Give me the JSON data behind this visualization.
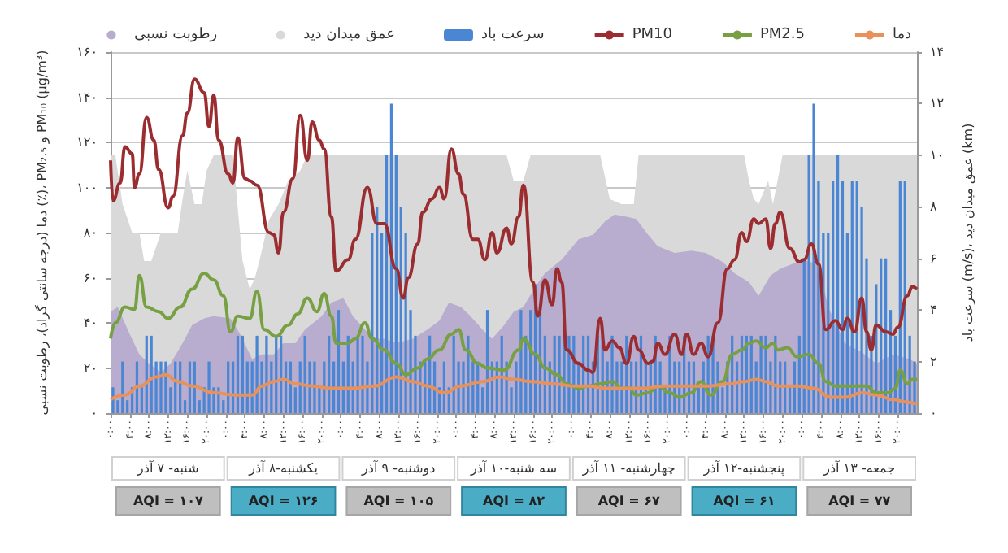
{
  "chart_data": {
    "type": "line",
    "ylabel": "دما (درجه سانتی گراد)، رطوبت نسبی (٪)، PM₂.₅ و PM₁₀ (µg/m³)",
    "y2label": "سرعت باد (m/s)، عمق میدان دید (km)",
    "x": [
      "--09-07T00:30",
      "--09-07T01:30",
      "--09-07T02:30",
      "--09-07T03:30",
      "--09-07T04:30",
      "--09-07T05:30",
      "--09-07T06:30",
      "--09-07T07:30",
      "--09-07T08:30",
      "--09-07T09:30",
      "--09-07T10:30",
      "--09-07T11:30",
      "--09-07T12:30",
      "--09-07T13:30",
      "--09-07T14:30",
      "--09-07T15:30",
      "--09-07T16:30",
      "--09-07T17:30",
      "--09-07T18:30",
      "--09-07T19:30",
      "--09-07T20:30",
      "--09-07T21:30",
      "--09-07T22:30",
      "--09-07T23:30",
      "--09-08T00:30",
      "--09-08T01:30",
      "--09-08T02:30",
      "--09-08T03:30",
      "--09-08T04:30",
      "--09-08T05:30",
      "--09-08T06:30",
      "--09-08T07:30",
      "--09-08T08:30",
      "--09-08T09:30",
      "--09-08T10:30",
      "--09-08T11:30",
      "--09-08T12:30",
      "--09-08T13:30",
      "--09-08T14:30",
      "--09-08T15:30",
      "--09-08T16:30",
      "--09-08T17:30",
      "--09-08T18:30",
      "--09-08T19:30",
      "--09-08T20:30",
      "--09-08T21:30",
      "--09-08T22:30",
      "--09-08T23:30",
      "--09-09T00:30",
      "--09-09T01:30",
      "--09-09T02:30",
      "--09-09T03:30",
      "--09-09T04:30",
      "--09-09T05:30",
      "--09-09T06:30",
      "--09-09T07:30",
      "--09-09T08:30",
      "--09-09T09:30",
      "--09-09T10:30",
      "--09-09T11:30",
      "--09-09T12:30",
      "--09-09T13:30",
      "--09-09T14:30",
      "--09-09T15:30",
      "--09-09T16:30",
      "--09-09T17:30",
      "--09-09T18:30",
      "--09-09T19:30",
      "--09-09T20:30",
      "--09-09T21:30",
      "--09-09T22:30",
      "--09-09T23:30",
      "--09-10T00:30",
      "--09-10T01:30",
      "--09-10T02:30",
      "--09-10T03:30",
      "--09-10T04:30",
      "--09-10T05:30",
      "--09-10T06:30",
      "--09-10T07:30",
      "--09-10T08:30",
      "--09-10T09:30",
      "--09-10T10:30",
      "--09-10T11:30",
      "--09-10T12:30",
      "--09-10T13:30",
      "--09-10T14:30",
      "--09-10T15:30",
      "--09-10T16:30",
      "--09-10T17:30",
      "--09-10T18:30",
      "--09-10T19:30",
      "--09-10T20:30",
      "--09-10T21:30",
      "--09-10T22:30",
      "--09-10T23:30",
      "--09-11T00:30",
      "--09-11T01:30",
      "--09-11T02:30",
      "--09-11T03:30",
      "--09-11T04:30",
      "--09-11T05:30",
      "--09-11T06:30",
      "--09-11T07:30",
      "--09-11T08:30",
      "--09-11T09:30",
      "--09-11T10:30",
      "--09-11T11:30",
      "--09-11T12:30",
      "--09-11T13:30",
      "--09-11T14:30",
      "--09-11T15:30",
      "--09-11T16:30",
      "--09-11T17:30",
      "--09-11T18:30",
      "--09-11T19:30",
      "--09-11T20:30",
      "--09-11T21:30",
      "--09-11T22:30",
      "--09-11T23:30",
      "--09-12T00:30",
      "--09-12T01:30",
      "--09-12T02:30",
      "--09-12T03:30",
      "--09-12T04:30",
      "--09-12T05:30",
      "--09-12T06:30",
      "--09-12T07:30",
      "--09-12T08:30",
      "--09-12T09:30",
      "--09-12T10:30",
      "--09-12T11:30",
      "--09-12T12:30",
      "--09-12T13:30",
      "--09-12T14:30",
      "--09-12T15:30",
      "--09-12T16:30",
      "--09-12T17:30",
      "--09-12T18:30",
      "--09-12T19:30",
      "--09-12T20:30",
      "--09-12T21:30",
      "--09-12T22:30",
      "--09-12T23:30",
      "--09-13T00:30",
      "--09-13T01:30",
      "--09-13T02:30",
      "--09-13T03:30",
      "--09-13T04:30",
      "--09-13T05:30",
      "--09-13T06:30",
      "--09-13T07:30",
      "--09-13T08:30",
      "--09-13T09:30",
      "--09-13T10:30",
      "--09-13T11:30",
      "--09-13T12:30",
      "--09-13T13:30",
      "--09-13T14:30",
      "--09-13T15:30",
      "--09-13T16:30",
      "--09-13T17:30",
      "--09-13T18:30",
      "--09-13T19:30",
      "--09-13T20:30",
      "--09-13T21:30",
      "--09-13T22:30",
      "--09-13T23:30"
    ],
    "series": [
      {
        "name": "رطوبت نسبی",
        "type": "area",
        "color": "#b9adcf",
        "x": [
          "--09-07T00:00",
          "--09-07T01:30",
          "--09-07T04:00",
          "--09-07T06:00",
          "--09-07T08:00",
          "--09-07T10:30",
          "--09-07T12:30",
          "--09-07T15:00",
          "--09-07T17:00",
          "--09-07T19:30",
          "--09-07T21:30",
          "--09-08T01:00",
          "--09-08T03:00",
          "--09-08T05:30",
          "--09-08T07:30",
          "--09-08T10:00",
          "--09-08T12:00",
          "--09-08T14:30",
          "--09-08T16:30",
          "--09-08T20:00",
          "--09-08T22:00",
          "--09-09T00:30",
          "--09-09T02:30",
          "--09-09T05:00",
          "--09-09T07:00",
          "--09-09T09:00",
          "--09-09T11:30",
          "--09-09T15:00",
          "--09-09T18:00",
          "--09-09T20:30",
          "--09-09T22:30",
          "--09-10T01:00",
          "--09-10T03:00",
          "--09-10T05:30",
          "--09-10T07:30",
          "--09-10T10:00",
          "--09-10T12:00",
          "--09-10T14:00",
          "--09-10T16:30",
          "--09-10T18:30",
          "--09-10T22:00",
          "--09-11T01:30",
          "--09-11T04:30",
          "--09-11T07:00",
          "--09-11T09:00",
          "--09-11T11:30",
          "--09-11T13:30",
          "--09-11T16:00",
          "--09-11T18:00",
          "--09-11T21:30",
          "--09-12T01:00",
          "--09-12T04:00",
          "--09-12T07:30",
          "--09-12T10:00",
          "--09-12T13:00",
          "--09-12T15:00",
          "--09-12T17:30",
          "--09-12T19:30",
          "--09-12T22:00",
          "--09-13T00:00",
          "--09-13T03:30",
          "--09-13T05:30",
          "--09-13T09:00",
          "--09-13T12:30",
          "--09-13T15:30",
          "--09-13T19:00",
          "--09-13T22:30",
          "--09-14T00:00"
        ],
        "values": [
          45,
          47,
          35,
          26,
          22,
          18,
          22,
          31,
          39,
          42,
          43,
          42,
          35,
          24,
          26,
          26,
          31,
          31,
          37,
          43,
          49,
          51,
          43,
          37,
          33,
          33,
          31,
          33,
          37,
          41,
          49,
          47,
          43,
          37,
          33,
          39,
          45,
          47,
          56,
          62,
          68,
          77,
          79,
          85,
          88,
          87,
          86,
          79,
          74,
          71,
          72,
          71,
          67,
          62,
          58,
          52,
          61,
          64,
          66,
          68,
          66,
          47,
          31,
          27,
          22,
          26,
          24,
          22
        ]
      },
      {
        "name": "عمق میدان دید",
        "type": "area",
        "axis": "y2",
        "color": "#d9d9d9",
        "x": [
          "--09-07T00:00",
          "--09-07T01:00",
          "--09-07T02:30",
          "--09-07T04:30",
          "--09-07T06:00",
          "--09-07T07:00",
          "--09-07T08:30",
          "--09-07T10:30",
          "--09-07T11:30",
          "--09-07T14:00",
          "--09-07T15:00",
          "--09-07T16:00",
          "--09-07T17:30",
          "--09-07T19:00",
          "--09-07T20:00",
          "--09-07T21:30",
          "--09-08T01:30",
          "--09-08T03:30",
          "--09-08T05:00",
          "--09-08T06:00",
          "--09-08T07:00",
          "--09-08T09:00",
          "--09-08T11:00",
          "--09-08T13:00",
          "--09-08T15:30",
          "--09-08T17:00",
          "--09-09T09:00",
          "--09-10T10:30",
          "--09-10T12:00",
          "--09-10T14:00",
          "--09-10T15:30",
          "--09-11T06:00",
          "--09-11T08:00",
          "--09-11T10:30",
          "--09-11T13:00",
          "--09-11T14:00",
          "--09-12T12:00",
          "--09-12T13:00",
          "--09-12T14:00",
          "--09-12T15:00",
          "--09-12T17:00",
          "--09-12T18:00",
          "--09-12T20:00",
          "--09-14T00:00"
        ],
        "values": [
          10,
          10,
          8.1,
          7,
          7,
          5.9,
          5.9,
          7,
          7,
          7,
          8.3,
          9.4,
          8.1,
          8.1,
          9.4,
          10,
          10,
          5.9,
          4.8,
          5.2,
          5.9,
          7.5,
          8.1,
          9,
          9.4,
          10,
          10,
          10,
          9,
          9,
          10,
          10,
          8.3,
          8.1,
          8.1,
          10,
          10,
          9,
          8.3,
          8.1,
          9,
          8.1,
          10,
          10
        ]
      },
      {
        "name": "سرعت باد",
        "type": "bar",
        "axis": "y2",
        "color": "#4a86d4",
        "values": [
          1,
          0.5,
          2,
          0.5,
          1,
          2,
          1,
          3,
          3,
          2,
          2,
          2,
          1,
          2,
          2,
          0.5,
          2,
          2,
          0.5,
          1,
          2,
          1,
          1,
          0.5,
          2,
          2,
          3,
          3,
          2,
          2,
          3,
          2,
          3,
          2,
          3,
          3,
          2,
          2,
          1,
          2,
          3,
          2,
          2,
          1,
          2,
          3,
          2,
          4,
          2,
          3,
          2,
          3,
          3,
          2,
          7,
          8,
          7,
          10,
          12,
          10,
          8,
          7,
          4,
          3,
          2,
          2,
          3,
          2,
          1,
          2,
          1,
          3,
          2,
          2,
          3,
          2,
          2,
          1,
          4,
          2,
          2,
          3,
          2,
          1,
          2,
          4,
          3,
          4,
          5,
          4,
          3,
          2,
          3,
          3,
          3,
          3,
          3,
          2,
          3,
          3,
          2,
          3,
          3,
          2,
          3,
          2,
          2,
          3,
          2,
          2,
          3,
          2,
          2,
          3,
          2,
          1,
          3,
          2,
          2,
          3,
          2,
          2,
          1,
          2,
          3,
          3,
          2,
          1,
          2,
          3,
          2,
          3,
          3,
          3,
          2,
          3,
          3,
          2,
          3,
          2,
          2,
          1,
          2,
          3,
          6,
          10,
          12,
          9,
          7,
          7,
          9,
          10,
          9,
          7,
          9,
          9,
          8,
          6,
          3,
          5,
          6,
          6,
          4,
          3,
          9,
          9,
          3,
          2
        ]
      },
      {
        "name": "PM10",
        "type": "line",
        "color": "#9b2d30",
        "x": [
          "--09-07T00:00",
          "--09-07T00:30",
          "--09-07T02:00",
          "--09-07T03:00",
          "--09-07T04:30",
          "--09-07T05:00",
          "--09-07T06:00",
          "--09-07T07:30",
          "--09-07T09:00",
          "--09-07T10:00",
          "--09-07T12:00",
          "--09-07T13:00",
          "--09-07T15:00",
          "--09-07T16:00",
          "--09-07T17:30",
          "--09-07T19:30",
          "--09-07T20:30",
          "--09-07T21:30",
          "--09-07T22:30",
          "--09-08T00:30",
          "--09-08T01:30",
          "--09-08T02:30",
          "--09-08T04:00",
          "--09-08T05:00",
          "--09-08T06:30",
          "--09-08T09:00",
          "--09-08T10:00",
          "--09-08T11:00",
          "--09-08T12:00",
          "--09-08T14:00",
          "--09-08T15:30",
          "--09-08T17:00",
          "--09-08T18:00",
          "--09-08T19:30",
          "--09-08T20:30",
          "--09-08T22:00",
          "--09-08T23:00",
          "--09-09T01:30",
          "--09-09T03:00",
          "--09-09T05:30",
          "--09-09T07:30",
          "--09-09T09:00",
          "--09-09T11:30",
          "--09-09T13:00",
          "--09-09T14:00",
          "--09-09T16:00",
          "--09-09T17:00",
          "--09-09T19:00",
          "--09-09T20:30",
          "--09-09T21:30",
          "--09-09T23:00",
          "--09-10T00:30",
          "--09-10T01:30",
          "--09-10T03:30",
          "--09-10T04:30",
          "--09-10T06:00",
          "--09-10T07:30",
          "--09-10T08:30",
          "--09-10T10:30",
          "--09-10T11:30",
          "--09-10T13:00",
          "--09-10T14:00",
          "--09-10T16:00",
          "--09-10T17:00",
          "--09-10T18:30",
          "--09-10T20:00",
          "--09-10T21:00",
          "--09-10T22:00",
          "--09-10T23:00",
          "--09-11T01:30",
          "--09-11T03:30",
          "--09-11T04:30",
          "--09-11T06:00",
          "--09-11T07:00",
          "--09-11T08:30",
          "--09-11T10:00",
          "--09-11T11:30",
          "--09-11T13:00",
          "--09-11T14:00",
          "--09-11T16:00",
          "--09-11T17:00",
          "--09-11T18:00",
          "--09-11T19:30",
          "--09-11T21:30",
          "--09-11T23:00",
          "--09-12T00:00",
          "--09-12T01:30",
          "--09-12T03:00",
          "--09-12T04:30",
          "--09-12T06:30",
          "--09-12T08:30",
          "--09-12T10:00",
          "--09-12T11:30",
          "--09-12T12:30",
          "--09-12T14:00",
          "--09-12T15:00",
          "--09-12T16:30",
          "--09-12T17:30",
          "--09-12T18:30",
          "--09-12T19:30",
          "--09-12T21:30",
          "--09-12T23:30",
          "--09-13T00:30",
          "--09-13T02:00",
          "--09-13T03:30",
          "--09-13T05:00",
          "--09-13T07:00",
          "--09-13T08:30",
          "--09-13T09:30",
          "--09-13T11:00",
          "--09-13T12:30",
          "--09-13T13:30",
          "--09-13T14:30",
          "--09-13T15:30",
          "--09-13T17:30",
          "--09-13T19:00",
          "--09-13T20:00",
          "--09-13T22:00",
          "--09-13T23:00",
          "--09-14T00:00"
        ],
        "values": [
          112,
          94,
          102,
          118,
          115,
          100,
          106,
          131,
          121,
          108,
          91,
          96,
          123,
          133,
          148,
          142,
          127,
          141,
          121,
          106,
          102,
          122,
          104,
          103,
          101,
          80,
          79,
          71,
          89,
          104,
          132,
          112,
          129,
          121,
          117,
          87,
          63,
          68,
          77,
          100,
          84,
          84,
          64,
          51,
          60,
          75,
          89,
          95,
          100,
          95,
          117,
          106,
          97,
          77,
          77,
          68,
          80,
          71,
          82,
          75,
          87,
          101,
          58,
          43,
          59,
          48,
          64,
          58,
          28,
          22,
          19,
          18,
          42,
          28,
          32,
          29,
          22,
          34,
          28,
          22,
          23,
          31,
          26,
          35,
          26,
          35,
          26,
          31,
          25,
          40,
          64,
          68,
          80,
          76,
          86,
          84,
          86,
          73,
          84,
          89,
          73,
          67,
          68,
          75,
          66,
          37,
          41,
          37,
          42,
          36,
          51,
          36,
          28,
          39,
          36,
          35,
          38,
          52,
          56,
          55
        ]
      },
      {
        "name": "PM2.5",
        "type": "line",
        "color": "#77a043",
        "x": [
          "--09-07T00:00",
          "--09-07T01:00",
          "--09-07T03:00",
          "--09-07T05:00",
          "--09-07T06:00",
          "--09-07T07:30",
          "--09-07T10:00",
          "--09-07T12:00",
          "--09-07T14:30",
          "--09-07T17:00",
          "--09-07T19:30",
          "--09-07T21:30",
          "--09-07T23:30",
          "--09-08T01:00",
          "--09-08T02:30",
          "--09-08T05:00",
          "--09-08T06:30",
          "--09-08T08:00",
          "--09-08T10:30",
          "--09-08T13:00",
          "--09-08T15:00",
          "--09-08T17:00",
          "--09-08T19:00",
          "--09-08T20:30",
          "--09-08T22:00",
          "--09-08T23:00",
          "--09-09T01:30",
          "--09-09T03:00",
          "--09-09T05:00",
          "--09-09T06:30",
          "--09-09T09:00",
          "--09-09T11:30",
          "--09-09T13:30",
          "--09-09T16:00",
          "--09-09T18:00",
          "--09-09T20:30",
          "--09-09T23:00",
          "--09-10T00:30",
          "--09-10T02:00",
          "--09-10T04:30",
          "--09-10T06:30",
          "--09-10T10:00",
          "--09-10T13:00",
          "--09-10T14:00",
          "--09-10T16:30",
          "--09-10T18:30",
          "--09-10T21:00",
          "--09-10T23:00",
          "--09-11T01:30",
          "--09-11T03:30",
          "--09-11T06:00",
          "--09-11T08:30",
          "--09-11T10:30",
          "--09-11T12:00",
          "--09-11T13:30",
          "--09-11T16:00",
          "--09-11T18:00",
          "--09-11T20:30",
          "--09-11T22:30",
          "--09-12T01:00",
          "--09-12T03:00",
          "--09-12T05:00",
          "--09-12T07:30",
          "--09-12T09:30",
          "--09-12T11:30",
          "--09-12T13:00",
          "--09-12T14:30",
          "--09-12T16:30",
          "--09-12T18:00",
          "--09-12T19:00",
          "--09-12T21:00",
          "--09-12T23:00",
          "--09-13T01:30",
          "--09-13T03:30",
          "--09-13T05:00",
          "--09-13T07:00",
          "--09-13T09:00",
          "--09-13T11:30",
          "--09-13T13:30",
          "--09-13T15:30",
          "--09-13T18:00",
          "--09-13T19:30",
          "--09-13T20:30",
          "--09-13T22:00",
          "--09-13T23:00",
          "--09-14T00:00"
        ],
        "values": [
          33,
          40,
          47,
          46,
          61,
          47,
          45,
          42,
          47,
          55,
          62,
          59,
          52,
          36,
          43,
          42,
          54,
          37,
          34,
          39,
          44,
          51,
          45,
          53,
          43,
          31,
          31,
          33,
          40,
          33,
          28,
          22,
          17,
          20,
          24,
          28,
          35,
          37,
          28,
          22,
          20,
          19,
          28,
          33,
          26,
          20,
          17,
          13,
          11,
          12,
          13,
          14,
          11,
          11,
          8,
          9,
          12,
          9,
          7,
          9,
          14,
          8,
          14,
          26,
          28,
          31,
          32,
          29,
          31,
          28,
          29,
          25,
          26,
          22,
          14,
          12,
          12,
          12,
          12,
          9,
          9,
          11,
          19,
          13,
          15,
          15
        ]
      },
      {
        "name": "دما",
        "type": "line",
        "color": "#e8915a",
        "x": [
          "--09-07T00:00",
          "--09-07T03:00",
          "--09-07T06:00",
          "--09-07T09:30",
          "--09-07T11:30",
          "--09-07T14:00",
          "--09-07T17:00",
          "--09-07T21:30",
          "--09-08T02:00",
          "--09-08T05:30",
          "--09-08T07:30",
          "--09-08T10:00",
          "--09-08T12:00",
          "--09-08T14:30",
          "--09-08T18:00",
          "--09-08T22:00",
          "--09-09T02:30",
          "--09-09T07:00",
          "--09-09T11:30",
          "--09-09T15:00",
          "--09-09T18:00",
          "--09-09T21:30",
          "--09-10T01:00",
          "--09-10T05:30",
          "--09-10T09:00",
          "--09-10T12:00",
          "--09-10T15:30",
          "--09-10T20:00",
          "--09-11T00:30",
          "--09-11T03:30",
          "--09-11T07:00",
          "--09-11T10:30",
          "--09-11T15:00",
          "--09-11T19:30",
          "--09-12T00:00",
          "--09-12T04:30",
          "--09-12T09:00",
          "--09-12T12:00",
          "--09-12T14:30",
          "--09-12T16:30",
          "--09-12T19:00",
          "--09-12T23:00",
          "--09-13T02:30",
          "--09-13T06:00",
          "--09-13T09:00",
          "--09-13T12:30",
          "--09-13T15:30",
          "--09-13T19:00",
          "--09-13T21:30",
          "--09-14T00:00"
        ],
        "values": [
          6,
          8,
          12,
          16,
          17,
          14,
          12,
          9,
          8,
          8,
          12,
          14,
          15,
          13,
          12,
          11,
          11,
          12,
          16,
          14,
          12,
          9,
          12,
          14,
          16,
          15,
          14,
          13,
          12,
          12,
          11,
          11,
          11,
          12,
          12,
          12,
          13,
          14,
          15,
          14,
          12,
          12,
          11,
          7,
          7,
          9,
          8,
          6,
          5,
          4
        ]
      }
    ],
    "xlim": [
      "--09-07T00:00",
      "--09-14T00:00"
    ],
    "xticks": [
      {
        "value": "--09-07T00:00",
        "label": "۰:۰۰"
      },
      {
        "value": "--09-07T04:00",
        "label": "۴:۰۰"
      },
      {
        "value": "--09-07T08:00",
        "label": "۸:۰۰"
      },
      {
        "value": "--09-07T12:00",
        "label": "۱۲:۰۰"
      },
      {
        "value": "--09-07T16:00",
        "label": "۱۶:۰۰"
      },
      {
        "value": "--09-07T20:00",
        "label": "۲۰:۰۰"
      },
      {
        "value": "--09-08T00:00",
        "label": "۰:۰۰"
      },
      {
        "value": "--09-08T04:00",
        "label": "۴:۰۰"
      },
      {
        "value": "--09-08T08:00",
        "label": "۸:۰۰"
      },
      {
        "value": "--09-08T12:00",
        "label": "۱۲:۰۰"
      },
      {
        "value": "--09-08T16:00",
        "label": "۱۶:۰۰"
      },
      {
        "value": "--09-08T20:00",
        "label": "۲۰:۰۰"
      },
      {
        "value": "--09-09T00:00",
        "label": "۰:۰۰"
      },
      {
        "value": "--09-09T04:00",
        "label": "۴:۰۰"
      },
      {
        "value": "--09-09T08:00",
        "label": "۸:۰۰"
      },
      {
        "value": "--09-09T12:00",
        "label": "۱۲:۰۰"
      },
      {
        "value": "--09-09T16:00",
        "label": "۱۶:۰۰"
      },
      {
        "value": "--09-09T20:00",
        "label": "۲۰:۰۰"
      },
      {
        "value": "--09-10T00:00",
        "label": "۰:۰۰"
      },
      {
        "value": "--09-10T04:00",
        "label": "۴:۰۰"
      },
      {
        "value": "--09-10T08:00",
        "label": "۸:۰۰"
      },
      {
        "value": "--09-10T12:00",
        "label": "۱۲:۰۰"
      },
      {
        "value": "--09-10T16:00",
        "label": "۱۶:۰۰"
      },
      {
        "value": "--09-10T20:00",
        "label": "۲۰:۰۰"
      },
      {
        "value": "--09-11T00:00",
        "label": "۰:۰۰"
      },
      {
        "value": "--09-11T04:00",
        "label": "۴:۰۰"
      },
      {
        "value": "--09-11T08:00",
        "label": "۸:۰۰"
      },
      {
        "value": "--09-11T12:00",
        "label": "۱۲:۰۰"
      },
      {
        "value": "--09-11T16:00",
        "label": "۱۶:۰۰"
      },
      {
        "value": "--09-11T20:00",
        "label": "۲۰:۰۰"
      },
      {
        "value": "--09-12T00:00",
        "label": "۰:۰۰"
      },
      {
        "value": "--09-12T04:00",
        "label": "۴:۰۰"
      },
      {
        "value": "--09-12T08:00",
        "label": "۸:۰۰"
      },
      {
        "value": "--09-12T12:00",
        "label": "۱۲:۰۰"
      },
      {
        "value": "--09-12T16:00",
        "label": "۱۶:۰۰"
      },
      {
        "value": "--09-12T20:00",
        "label": "۲۰:۰۰"
      },
      {
        "value": "--09-13T00:00",
        "label": "۰:۰۰"
      },
      {
        "value": "--09-13T04:00",
        "label": "۴:۰۰"
      },
      {
        "value": "--09-13T08:00",
        "label": "۸:۰۰"
      },
      {
        "value": "--09-13T12:00",
        "label": "۱۲:۰۰"
      },
      {
        "value": "--09-13T16:00",
        "label": "۱۶:۰۰"
      },
      {
        "value": "--09-13T20:00",
        "label": "۲۰:۰۰"
      }
    ],
    "ylim": [
      0,
      160
    ],
    "yticks": [
      {
        "value": 0,
        "label": "۰"
      },
      {
        "value": 20,
        "label": "۲۰"
      },
      {
        "value": 40,
        "label": "۴۰"
      },
      {
        "value": 60,
        "label": "۶۰"
      },
      {
        "value": 80,
        "label": "۸۰"
      },
      {
        "value": 100,
        "label": "۱۰۰"
      },
      {
        "value": 120,
        "label": "۱۲۰"
      },
      {
        "value": 140,
        "label": "۱۴۰"
      },
      {
        "value": 160,
        "label": "۱۶۰"
      }
    ],
    "y2lim": [
      0,
      14
    ],
    "y2ticks": [
      {
        "value": 0,
        "label": "۰"
      },
      {
        "value": 2,
        "label": "۲"
      },
      {
        "value": 4,
        "label": "۴"
      },
      {
        "value": 6,
        "label": "۶"
      },
      {
        "value": 8,
        "label": "۸"
      },
      {
        "value": 10,
        "label": "۱۰"
      },
      {
        "value": 12,
        "label": "۱۲"
      },
      {
        "value": 14,
        "label": "۱۴"
      }
    ],
    "grid": "y",
    "legend": "top",
    "marker": "none",
    "annotations": [
      "شنبه- ۷ آذر",
      "AQI = ۱۰۷",
      "یکشنبه-۸ آذر",
      "AQI = ۱۲۶",
      "دوشنبه- ۹ آذر",
      "AQI = ۱۰۵",
      "سه شنبه-۱۰ آذر",
      "AQI = ۸۲",
      "چهارشنبه- ۱۱ آذر",
      "AQI = ۶۷",
      "پنجشنبه-۱۲ آذر",
      "AQI = ۶۱",
      "جمعه- ۱۳ آذر",
      "AQI = ۷۷"
    ]
  }
}
